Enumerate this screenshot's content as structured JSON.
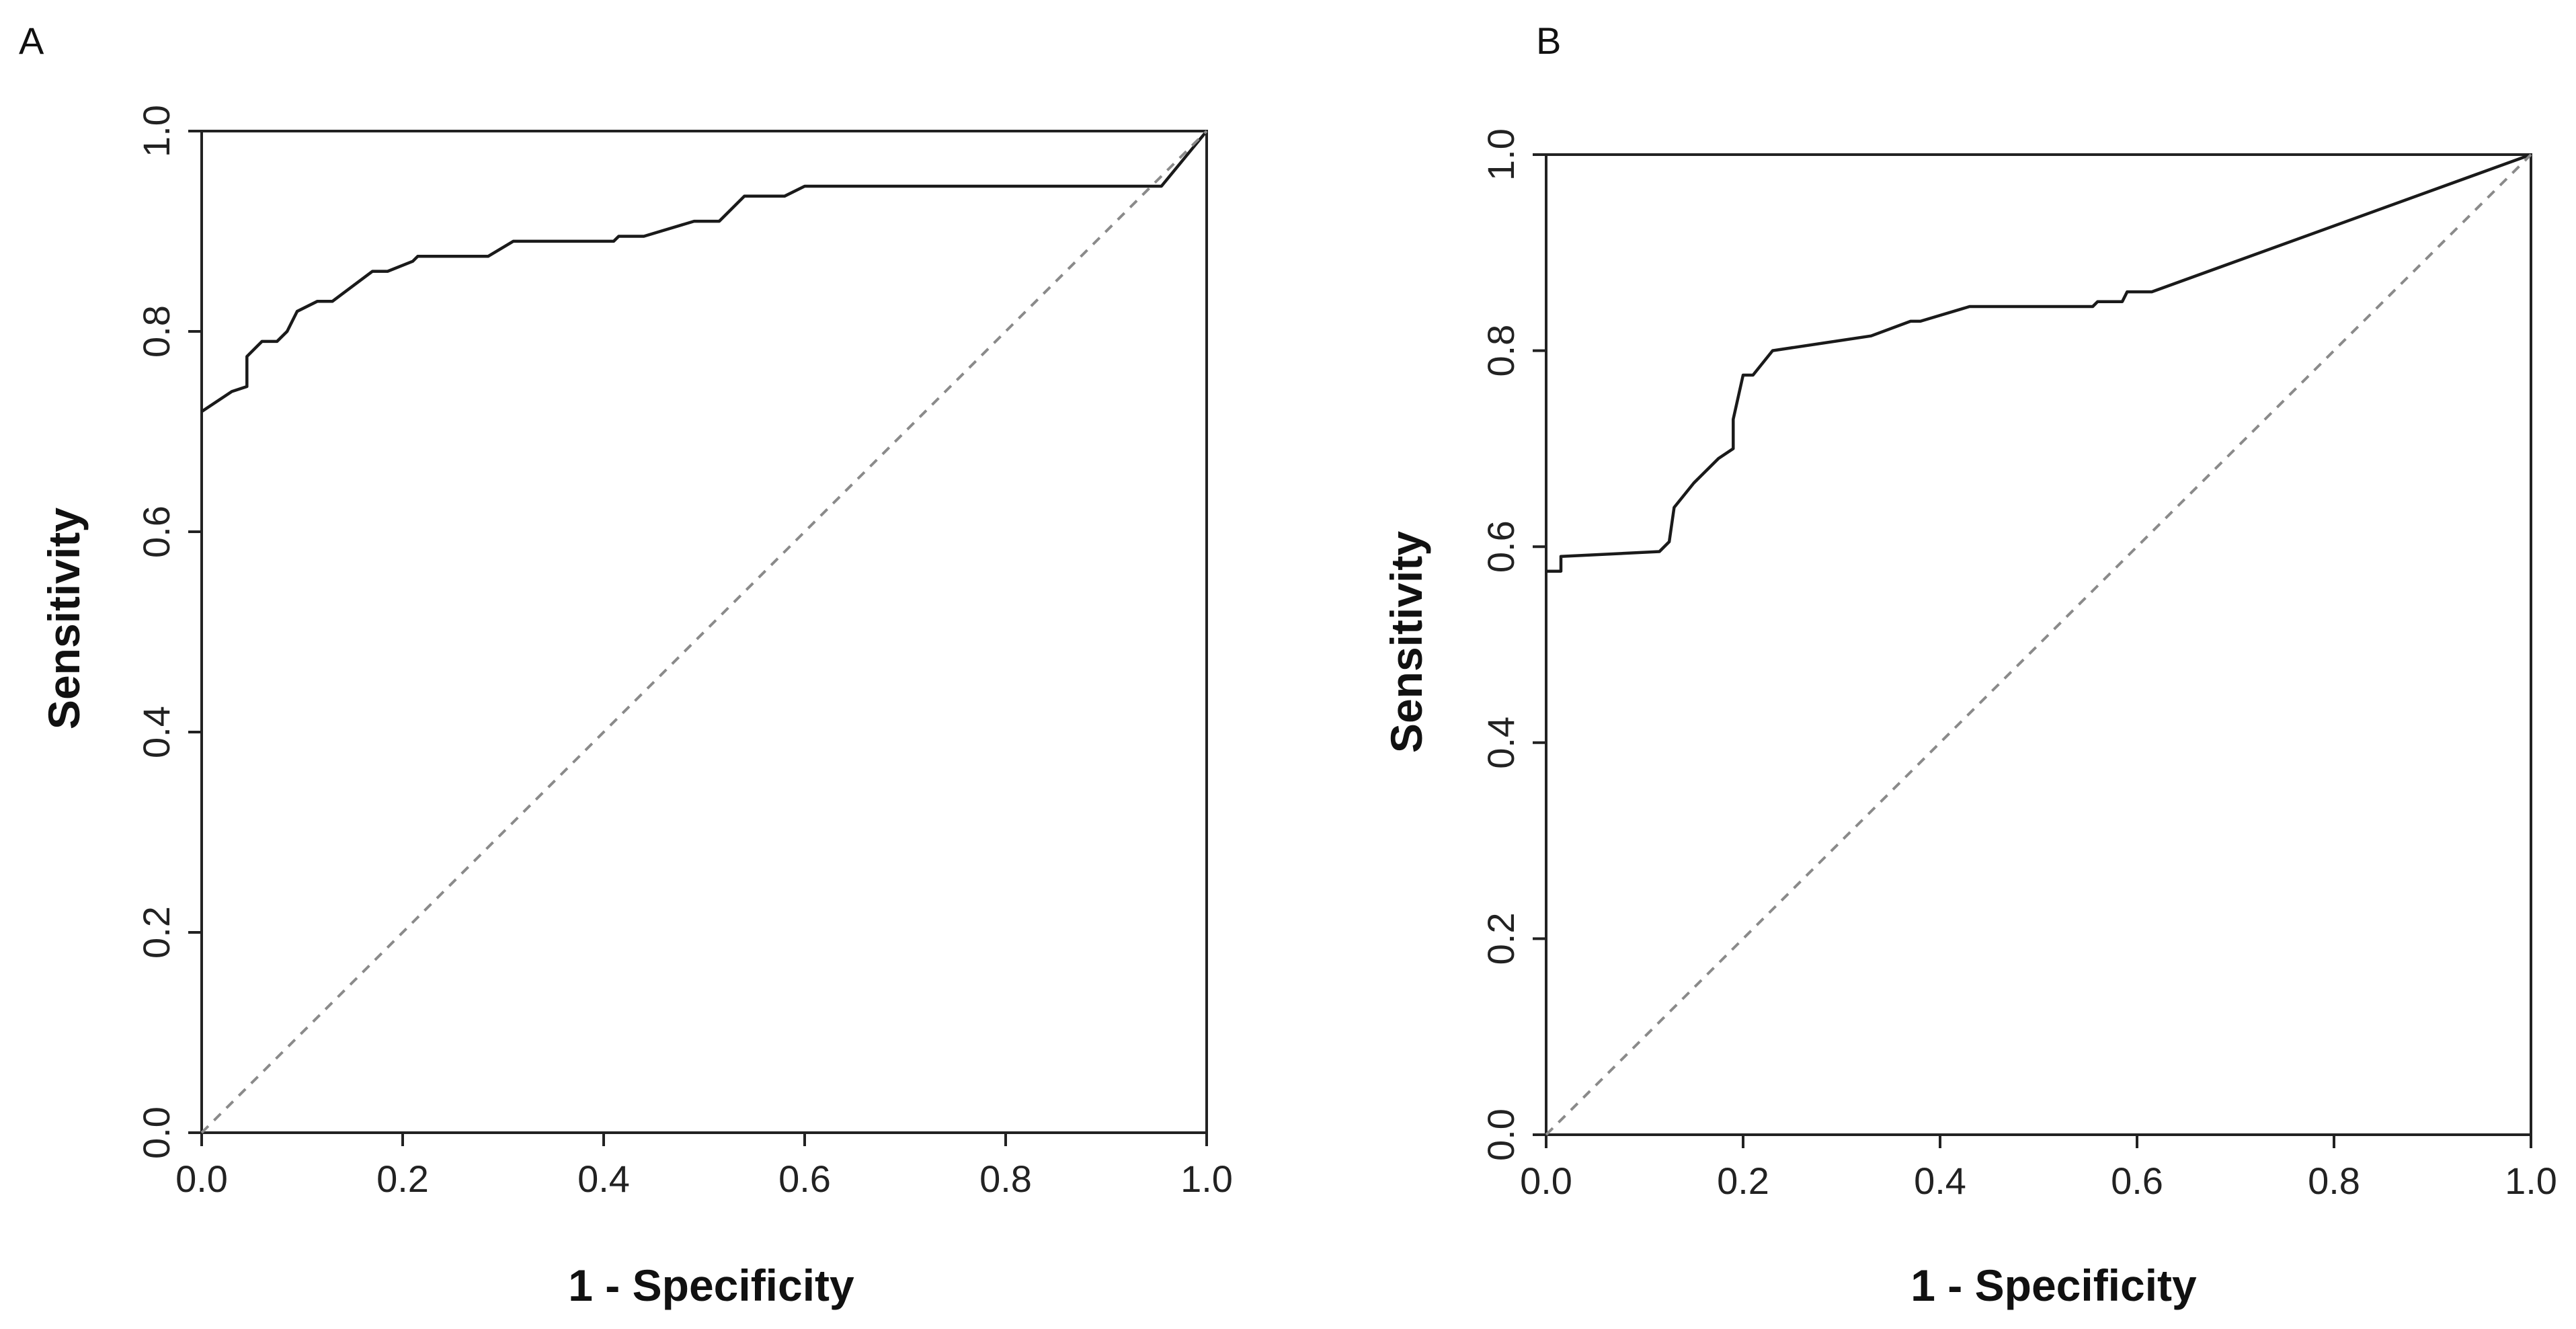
{
  "chart_data": [
    {
      "type": "line",
      "panel_label": "A",
      "xlabel": "1 - Specificity",
      "ylabel": "Sensitivity",
      "xlim": [
        0,
        1
      ],
      "ylim": [
        0,
        1
      ],
      "x_ticks": [
        "0.0",
        "0.2",
        "0.4",
        "0.6",
        "0.8",
        "1.0"
      ],
      "y_ticks": [
        "0.0",
        "0.2",
        "0.4",
        "0.6",
        "0.8",
        "1.0"
      ],
      "grid": false,
      "series": [
        {
          "name": "ROC curve",
          "style": "solid",
          "x": [
            0,
            0.03,
            0.045,
            0.045,
            0.06,
            0.075,
            0.085,
            0.095,
            0.115,
            0.13,
            0.17,
            0.185,
            0.21,
            0.215,
            0.285,
            0.31,
            0.41,
            0.415,
            0.44,
            0.49,
            0.515,
            0.54,
            0.58,
            0.6,
            0.955,
            1.0
          ],
          "y": [
            0.72,
            0.74,
            0.745,
            0.775,
            0.79,
            0.79,
            0.8,
            0.82,
            0.83,
            0.83,
            0.86,
            0.86,
            0.87,
            0.875,
            0.875,
            0.89,
            0.89,
            0.895,
            0.895,
            0.91,
            0.91,
            0.935,
            0.935,
            0.945,
            0.945,
            1.0
          ]
        },
        {
          "name": "Reference line",
          "style": "dashed",
          "x": [
            0,
            1
          ],
          "y": [
            0,
            1
          ]
        }
      ]
    },
    {
      "type": "line",
      "panel_label": "B",
      "xlabel": "1 - Specificity",
      "ylabel": "Sensitivity",
      "xlim": [
        0,
        1
      ],
      "ylim": [
        0,
        1
      ],
      "x_ticks": [
        "0.0",
        "0.2",
        "0.4",
        "0.6",
        "0.8",
        "1.0"
      ],
      "y_ticks": [
        "0.0",
        "0.2",
        "0.4",
        "0.6",
        "0.8",
        "1.0"
      ],
      "grid": false,
      "series": [
        {
          "name": "ROC curve",
          "style": "solid",
          "x": [
            0,
            0.015,
            0.015,
            0.115,
            0.125,
            0.13,
            0.15,
            0.165,
            0.175,
            0.19,
            0.19,
            0.2,
            0.21,
            0.23,
            0.33,
            0.37,
            0.38,
            0.43,
            0.555,
            0.56,
            0.585,
            0.59,
            0.615,
            1.0
          ],
          "y": [
            0.575,
            0.575,
            0.59,
            0.595,
            0.605,
            0.64,
            0.665,
            0.68,
            0.69,
            0.7,
            0.73,
            0.775,
            0.775,
            0.8,
            0.815,
            0.83,
            0.83,
            0.845,
            0.845,
            0.85,
            0.85,
            0.86,
            0.86,
            1.0
          ]
        },
        {
          "name": "Reference line",
          "style": "dashed",
          "x": [
            0,
            1
          ],
          "y": [
            0,
            1
          ]
        }
      ]
    }
  ]
}
